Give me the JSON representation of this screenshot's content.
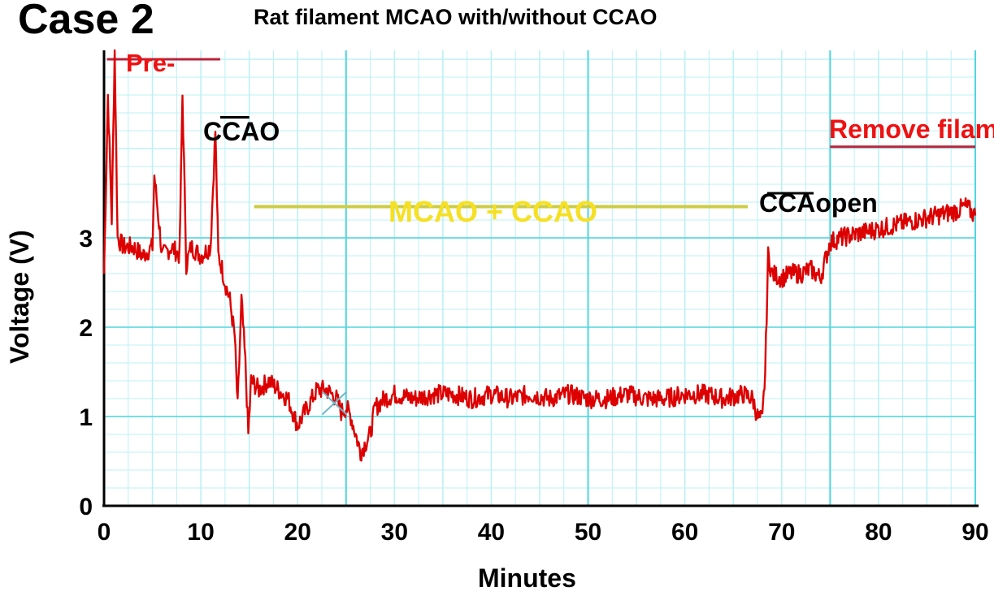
{
  "case_label": "Case 2",
  "chart_data": {
    "type": "line",
    "title": "Rat filament MCAO with/without CCAO",
    "xlabel": "Minutes",
    "ylabel": "Voltage (V)",
    "xlim": [
      0,
      90
    ],
    "ylim": [
      0,
      5.1
    ],
    "xticks": [
      0,
      10,
      20,
      30,
      40,
      50,
      60,
      70,
      80,
      90
    ],
    "yticks": [
      0,
      1,
      2,
      3
    ],
    "grid": true,
    "series": [
      {
        "name": "Voltage",
        "color": "#dd0000",
        "x": [
          0,
          0.4,
          0.8,
          1.1,
          1.4,
          2,
          3,
          4,
          5,
          5.2,
          6,
          7,
          7.8,
          8.1,
          8.5,
          9,
          10,
          11,
          11.5,
          11.8,
          12.1,
          12.5,
          13,
          13.5,
          13.8,
          14.2,
          14.6,
          14.9,
          15.2,
          16,
          17,
          18,
          19,
          20,
          21,
          22,
          23,
          24,
          24.5,
          25,
          25.5,
          26,
          26.5,
          27,
          27.5,
          28,
          29,
          30,
          32,
          34,
          36,
          38,
          40,
          42,
          44,
          46,
          48,
          50,
          52,
          54,
          56,
          58,
          60,
          62,
          64,
          66,
          67,
          67.5,
          68,
          68.3,
          68.6,
          69,
          70,
          71,
          72,
          73,
          73.5,
          74,
          74.5,
          75,
          76,
          78,
          80,
          82,
          84,
          86,
          88,
          89,
          90
        ],
        "y": [
          2.6,
          4.6,
          3.2,
          5.1,
          3.0,
          2.9,
          2.9,
          2.8,
          2.9,
          3.7,
          2.8,
          2.9,
          2.8,
          4.6,
          2.7,
          2.9,
          2.8,
          2.9,
          4.2,
          2.8,
          2.7,
          2.5,
          2.3,
          1.9,
          1.1,
          2.3,
          1.6,
          0.8,
          1.4,
          1.3,
          1.4,
          1.3,
          1.2,
          0.9,
          1.1,
          1.3,
          1.3,
          1.2,
          1.05,
          1.1,
          1.0,
          0.8,
          0.6,
          0.7,
          0.8,
          1.1,
          1.2,
          1.25,
          1.2,
          1.25,
          1.25,
          1.2,
          1.25,
          1.2,
          1.25,
          1.2,
          1.25,
          1.2,
          1.2,
          1.25,
          1.2,
          1.2,
          1.25,
          1.25,
          1.2,
          1.25,
          1.2,
          1.0,
          0.95,
          1.5,
          2.8,
          2.6,
          2.55,
          2.6,
          2.6,
          2.65,
          2.6,
          2.55,
          2.75,
          2.95,
          3.0,
          3.05,
          3.1,
          3.15,
          3.2,
          3.25,
          3.3,
          3.35,
          3.25
        ]
      }
    ],
    "annotations": [
      {
        "label": "Pre-",
        "color": "#ee1111",
        "bar_color": "#b8243c",
        "x_start": 0.3,
        "x_end": 12.0,
        "y": 5.0
      },
      {
        "label": "CCAO",
        "color": "#000000",
        "bar_color": "#000000",
        "x_start": 12.0,
        "x_end": 15.0,
        "y": 4.35
      },
      {
        "label": "MCAO + CCAO",
        "color": "#f5e025",
        "bar_color": "#cccc44",
        "x_start": 15.5,
        "x_end": 66.5,
        "y": 3.35
      },
      {
        "label": "CCAopen",
        "color": "#000000",
        "bar_color": "#000000",
        "x_start": 68.5,
        "x_end": 73.3,
        "y": 3.5
      },
      {
        "label": "Remove filament",
        "color": "#ee1111",
        "bar_color": "#b8243c",
        "x_start": 75.0,
        "x_end": 90.0,
        "y": 4.02
      }
    ]
  }
}
